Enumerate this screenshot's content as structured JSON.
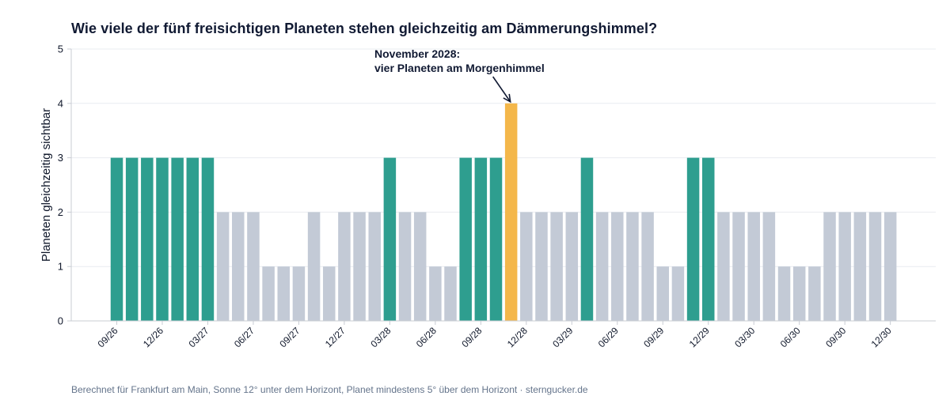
{
  "colors": {
    "multi": "#2e9e8f",
    "regular": "#c3cad6",
    "highlight": "#f4b74a",
    "grid": "#e9ecf1",
    "axis": "#c8ccd3",
    "text": "#111a33"
  },
  "chart_data": {
    "type": "bar",
    "title": "Wie viele der fünf freisichtigen Planeten stehen gleichzeitig am Dämmerungshimmel?",
    "xlabel": "",
    "ylabel": "Planeten gleichzeitig sichtbar",
    "ylim": [
      0,
      5
    ],
    "yticks": [
      0,
      1,
      2,
      3,
      4,
      5
    ],
    "grid": true,
    "x_tick_labels": [
      "09/26",
      "12/26",
      "03/27",
      "06/27",
      "09/27",
      "12/27",
      "03/28",
      "06/28",
      "09/28",
      "12/28",
      "03/29",
      "06/29",
      "09/29",
      "12/29",
      "03/30",
      "06/30",
      "09/30",
      "12/30"
    ],
    "categories": [
      "09/26",
      "10/26",
      "11/26",
      "12/26",
      "01/27",
      "02/27",
      "03/27",
      "04/27",
      "05/27",
      "06/27",
      "07/27",
      "08/27",
      "09/27",
      "10/27",
      "11/27",
      "12/27",
      "01/28",
      "02/28",
      "03/28",
      "04/28",
      "05/28",
      "06/28",
      "07/28",
      "08/28",
      "09/28",
      "10/28",
      "11/28",
      "12/28",
      "01/29",
      "02/29",
      "03/29",
      "04/29",
      "05/29",
      "06/29",
      "07/29",
      "08/29",
      "09/29",
      "10/29",
      "11/29",
      "12/29",
      "01/30",
      "02/30",
      "03/30",
      "04/30",
      "05/30",
      "06/30",
      "07/30",
      "08/30",
      "09/30",
      "10/30",
      "11/30",
      "12/30"
    ],
    "values": [
      3,
      3,
      3,
      3,
      3,
      3,
      3,
      2,
      2,
      2,
      1,
      1,
      1,
      2,
      1,
      2,
      2,
      2,
      3,
      2,
      2,
      1,
      1,
      3,
      3,
      3,
      4,
      2,
      2,
      2,
      2,
      3,
      2,
      2,
      2,
      2,
      1,
      1,
      3,
      3,
      2,
      2,
      2,
      2,
      1,
      1,
      1,
      2,
      2,
      2,
      2,
      2
    ],
    "highlight_category": "11/28",
    "annotation": {
      "line1": "November 2028:",
      "line2": "vier Planeten am Morgenhimmel",
      "target_category": "11/28",
      "target_value": 4
    }
  },
  "source": "Berechnet für Frankfurt am Main, Sonne 12° unter dem Horizont, Planet mindestens 5° über dem Horizont · sterngucker.de"
}
